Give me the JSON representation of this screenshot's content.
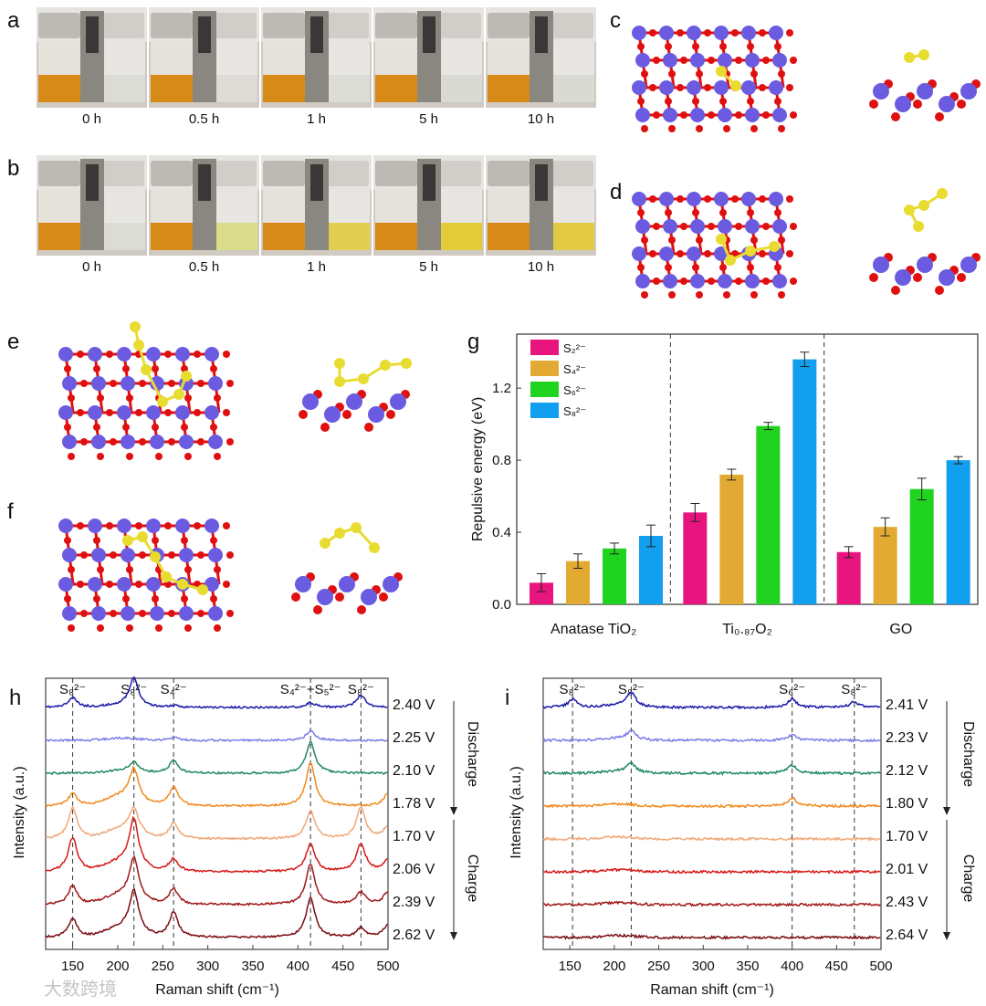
{
  "panels": {
    "a": "a",
    "b": "b",
    "c": "c",
    "d": "d",
    "e": "e",
    "f": "f",
    "g": "g",
    "h": "h",
    "i": "i"
  },
  "photos": {
    "times": [
      "0 h",
      "0.5 h",
      "1 h",
      "5 h",
      "10 h"
    ],
    "a_right_vial_colors": [
      "#dcdcd6",
      "#dedcd6",
      "#dcdcd6",
      "#dadad4",
      "#dadad4"
    ],
    "b_right_vial_colors": [
      "#dcdcd6",
      "#d9dc8a",
      "#e0cf50",
      "#e2cc3a",
      "#e3ca45"
    ],
    "left_vial_color": "#d88a18"
  },
  "colors": {
    "ti": "#6a5be0",
    "o": "#e01010",
    "s": "#e8dc30"
  },
  "watermark": "大数跨境",
  "chart_data": [
    {
      "id": "g",
      "type": "bar",
      "ylabel": "Repulsive energy (eV)",
      "xlabel": "",
      "ylim": [
        0,
        1.5
      ],
      "yticks": [
        "0.0",
        "0.4",
        "0.8",
        "1.2"
      ],
      "categories": [
        "Anatase TiO₂",
        "Ti₀.₈₇O₂",
        "GO"
      ],
      "legend_position": "top-left",
      "series": [
        {
          "name": "S₂²⁻",
          "color": "#e8157f",
          "values": [
            0.12,
            0.51,
            0.29
          ],
          "errors": [
            0.05,
            0.05,
            0.03
          ]
        },
        {
          "name": "S₄²⁻",
          "color": "#e2aa32",
          "values": [
            0.24,
            0.72,
            0.43
          ],
          "errors": [
            0.04,
            0.03,
            0.05
          ]
        },
        {
          "name": "S₆²⁻",
          "color": "#1fd31f",
          "values": [
            0.31,
            0.99,
            0.64
          ],
          "errors": [
            0.03,
            0.02,
            0.06
          ]
        },
        {
          "name": "S₈²⁻",
          "color": "#139ff0",
          "values": [
            0.38,
            1.36,
            0.8
          ],
          "errors": [
            0.06,
            0.04,
            0.02
          ]
        }
      ]
    },
    {
      "id": "h",
      "type": "line",
      "xlabel": "Raman shift (cm⁻¹)",
      "ylabel": "Intensity (a.u.)",
      "xlim": [
        120,
        500
      ],
      "xticks": [
        "150",
        "200",
        "250",
        "300",
        "350",
        "400",
        "450",
        "500"
      ],
      "peak_lines": [
        150,
        218,
        262,
        414,
        470
      ],
      "peak_labels": [
        {
          "x": 150,
          "text": "S₈²⁻"
        },
        {
          "x": 218,
          "text": "S₈²⁻"
        },
        {
          "x": 262,
          "text": "S₄²⁻"
        },
        {
          "x": 414,
          "text": "S₄²⁻+S₅²⁻"
        },
        {
          "x": 470,
          "text": "S₈²⁻"
        }
      ],
      "discharge_label": "Discharge",
      "charge_label": "Charge",
      "series": [
        {
          "name": "2.40 V",
          "color": "#1a1aa8",
          "peaks": {
            "150": 0.3,
            "218": 0.9,
            "262": 0.05,
            "414": 0.15,
            "470": 0.4
          }
        },
        {
          "name": "2.25 V",
          "color": "#7b7be8",
          "peaks": {
            "262": 0.1,
            "414": 0.3
          }
        },
        {
          "name": "2.10 V",
          "color": "#1f8a5e",
          "peaks": {
            "218": 0.3,
            "262": 0.4,
            "414": 1.0
          }
        },
        {
          "name": "1.78 V",
          "color": "#f08a1e",
          "peaks": {
            "150": 0.4,
            "218": 1.0,
            "262": 0.6,
            "414": 1.4,
            "500": 0.4
          }
        },
        {
          "name": "1.70 V",
          "color": "#f0a878",
          "peaks": {
            "150": 1.0,
            "218": 0.8,
            "262": 0.5,
            "414": 0.9,
            "470": 1.0,
            "500": 0.4
          }
        },
        {
          "name": "2.06 V",
          "color": "#d81818",
          "peaks": {
            "150": 1.1,
            "218": 1.5,
            "262": 0.4,
            "414": 0.9,
            "470": 0.9,
            "500": 0.4
          }
        },
        {
          "name": "2.39 V",
          "color": "#a01818",
          "peaks": {
            "150": 0.6,
            "218": 1.3,
            "262": 0.5,
            "414": 1.3,
            "470": 0.4,
            "500": 0.4
          }
        },
        {
          "name": "2.62 V",
          "color": "#7a0c12",
          "peaks": {
            "150": 0.6,
            "218": 1.3,
            "262": 0.8,
            "414": 1.3,
            "470": 0.3,
            "500": 0.4
          }
        }
      ]
    },
    {
      "id": "i",
      "type": "line",
      "xlabel": "Raman shift (cm⁻¹)",
      "ylabel": "Intensity (a.u.)",
      "xlim": [
        120,
        500
      ],
      "xticks": [
        "150",
        "200",
        "250",
        "300",
        "350",
        "400",
        "450",
        "500"
      ],
      "peak_lines": [
        153,
        219,
        400,
        470
      ],
      "peak_labels": [
        {
          "x": 153,
          "text": "S₈²⁻"
        },
        {
          "x": 219,
          "text": "S₈²⁻"
        },
        {
          "x": 400,
          "text": "S₆²⁻"
        },
        {
          "x": 470,
          "text": "S₈²⁻"
        }
      ],
      "discharge_label": "Discharge",
      "charge_label": "Charge",
      "series": [
        {
          "name": "2.41 V",
          "color": "#1a1aa8",
          "peaks": {
            "153": 0.3,
            "219": 0.5,
            "400": 0.3,
            "470": 0.2
          }
        },
        {
          "name": "2.23 V",
          "color": "#7b7be8",
          "peaks": {
            "219": 0.3,
            "400": 0.2
          }
        },
        {
          "name": "2.12 V",
          "color": "#1f8a5e",
          "peaks": {
            "219": 0.3,
            "400": 0.3
          }
        },
        {
          "name": "1.80 V",
          "color": "#f08a1e",
          "peaks": {
            "400": 0.3
          }
        },
        {
          "name": "1.70 V",
          "color": "#f0a878",
          "peaks": {}
        },
        {
          "name": "2.01 V",
          "color": "#d81818",
          "peaks": {}
        },
        {
          "name": "2.43 V",
          "color": "#a01818",
          "peaks": {}
        },
        {
          "name": "2.64 V",
          "color": "#7a0c12",
          "peaks": {}
        }
      ]
    }
  ]
}
